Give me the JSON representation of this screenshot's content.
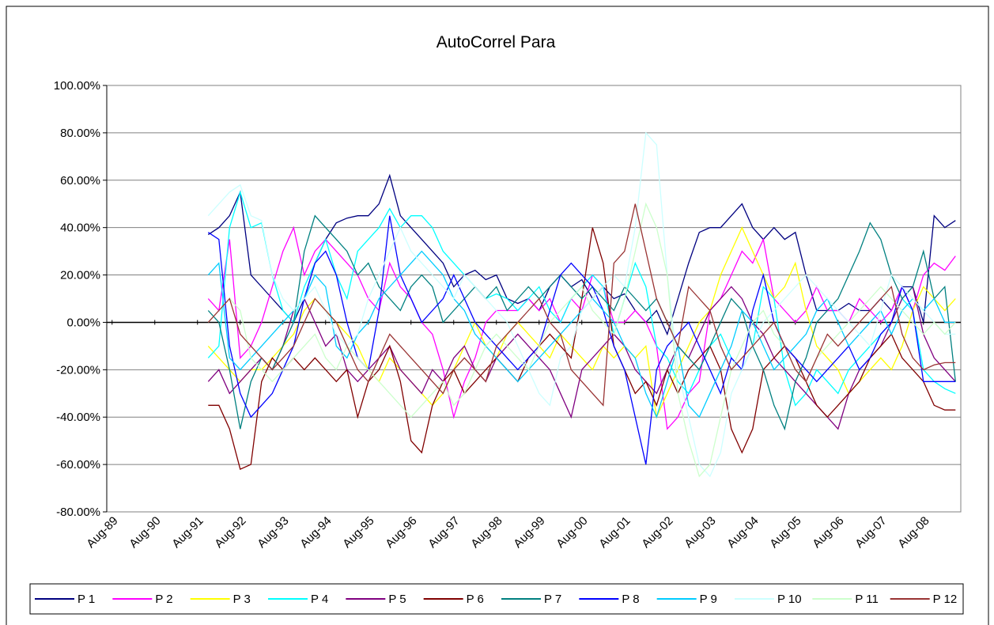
{
  "chart_data": {
    "type": "line",
    "title": "AutoCorrel Para",
    "categories": [
      "Aug-89",
      null,
      null,
      null,
      "Aug-90",
      null,
      null,
      null,
      "Aug-91",
      null,
      null,
      null,
      "Aug-92",
      null,
      null,
      null,
      "Aug-93",
      null,
      null,
      null,
      "Aug-94",
      null,
      null,
      null,
      "Aug-95",
      null,
      null,
      null,
      "Aug-96",
      null,
      null,
      null,
      "Aug-97",
      null,
      null,
      null,
      "Aug-98",
      null,
      null,
      null,
      "Aug-99",
      null,
      null,
      null,
      "Aug-00",
      null,
      null,
      null,
      "Aug-01",
      null,
      null,
      null,
      "Aug-02",
      null,
      null,
      null,
      "Aug-03",
      null,
      null,
      null,
      "Aug-04",
      null,
      null,
      null,
      "Aug-05",
      null,
      null,
      null,
      "Aug-06",
      null,
      null,
      null,
      "Aug-07",
      null,
      null,
      null,
      "Aug-08",
      null,
      null,
      null
    ],
    "ylim": [
      -80,
      100
    ],
    "yticks": [
      {
        "value": -80,
        "label": "-80.00%"
      },
      {
        "value": -60,
        "label": "-60.00%"
      },
      {
        "value": -40,
        "label": "-40.00%"
      },
      {
        "value": -20,
        "label": "-20.00%"
      },
      {
        "value": 0,
        "label": "0.00%"
      },
      {
        "value": 20,
        "label": "20.00%"
      },
      {
        "value": 40,
        "label": "40.00%"
      },
      {
        "value": 60,
        "label": "60.00%"
      },
      {
        "value": 80,
        "label": "80.00%"
      },
      {
        "value": 100,
        "label": "100.00%"
      }
    ],
    "grid": true,
    "legend": "bottom",
    "series": [
      {
        "name": "P 1",
        "color": "#000080",
        "values": [
          null,
          null,
          null,
          null,
          null,
          null,
          null,
          null,
          null,
          37,
          40,
          45,
          55,
          20,
          15,
          10,
          5,
          0,
          10,
          25,
          35,
          42,
          44,
          45,
          45,
          50,
          62,
          45,
          40,
          35,
          30,
          25,
          15,
          20,
          22,
          18,
          20,
          10,
          8,
          10,
          5,
          15,
          20,
          15,
          18,
          10,
          15,
          10,
          12,
          5,
          0,
          5,
          -5,
          10,
          25,
          38,
          40,
          40,
          45,
          50,
          40,
          35,
          40,
          35,
          38,
          20,
          5,
          5,
          5,
          8,
          5,
          5,
          10,
          5,
          15,
          15,
          0,
          45,
          40,
          43
        ]
      },
      {
        "name": "P 2",
        "color": "#ff00ff",
        "values": [
          null,
          null,
          null,
          null,
          null,
          null,
          null,
          null,
          null,
          10,
          5,
          35,
          -15,
          -10,
          0,
          15,
          30,
          40,
          20,
          30,
          35,
          30,
          25,
          20,
          10,
          5,
          25,
          15,
          10,
          0,
          -5,
          -20,
          -40,
          -25,
          -15,
          0,
          5,
          5,
          5,
          10,
          5,
          10,
          0,
          10,
          5,
          20,
          15,
          0,
          0,
          5,
          0,
          -10,
          -45,
          -40,
          -30,
          -25,
          5,
          10,
          20,
          30,
          25,
          35,
          10,
          5,
          0,
          5,
          15,
          5,
          5,
          0,
          10,
          5,
          0,
          5,
          15,
          5,
          20,
          25,
          22,
          28
        ]
      },
      {
        "name": "P 3",
        "color": "#ffff00",
        "values": [
          null,
          null,
          null,
          null,
          null,
          null,
          null,
          null,
          null,
          -10,
          -15,
          -20,
          -25,
          -20,
          -20,
          -15,
          -10,
          -5,
          5,
          10,
          5,
          0,
          -5,
          -10,
          -20,
          -25,
          -15,
          -20,
          -25,
          -30,
          -35,
          -30,
          -20,
          -10,
          0,
          -10,
          -15,
          -5,
          0,
          -5,
          -10,
          -15,
          -5,
          -10,
          -15,
          -20,
          -10,
          -15,
          -10,
          -15,
          -10,
          -40,
          -30,
          -20,
          -10,
          0,
          5,
          20,
          30,
          40,
          30,
          20,
          10,
          15,
          25,
          5,
          -10,
          -15,
          -20,
          -30,
          -25,
          -20,
          -15,
          -20,
          -10,
          5,
          15,
          10,
          5,
          10
        ]
      },
      {
        "name": "P 4",
        "color": "#00ffff",
        "values": [
          null,
          null,
          null,
          null,
          null,
          null,
          null,
          null,
          null,
          -15,
          -10,
          40,
          55,
          40,
          42,
          20,
          5,
          0,
          15,
          25,
          35,
          20,
          10,
          30,
          35,
          40,
          48,
          40,
          45,
          45,
          40,
          30,
          25,
          20,
          15,
          10,
          12,
          10,
          5,
          10,
          15,
          5,
          0,
          10,
          15,
          20,
          15,
          -5,
          10,
          25,
          15,
          -10,
          -15,
          -25,
          -30,
          -20,
          -10,
          -5,
          -15,
          -20,
          -10,
          15,
          10,
          -20,
          -35,
          -30,
          -20,
          -25,
          -30,
          -20,
          -15,
          -10,
          -5,
          0,
          10,
          5,
          -20,
          -25,
          -28,
          -30
        ]
      },
      {
        "name": "P 5",
        "color": "#800080",
        "values": [
          null,
          null,
          null,
          null,
          null,
          null,
          null,
          null,
          null,
          -25,
          -20,
          -30,
          -25,
          -20,
          -15,
          -20,
          -10,
          5,
          10,
          0,
          -10,
          -5,
          -20,
          -25,
          -20,
          -15,
          -10,
          -20,
          -25,
          -30,
          -20,
          -25,
          -15,
          -10,
          -20,
          -25,
          -15,
          -10,
          -5,
          -10,
          -15,
          -20,
          -30,
          -40,
          -20,
          -15,
          -10,
          -5,
          -10,
          -20,
          -25,
          -30,
          -20,
          -10,
          -15,
          -5,
          5,
          10,
          15,
          10,
          0,
          -5,
          -15,
          -20,
          -25,
          -30,
          -35,
          -40,
          -45,
          -30,
          -20,
          -15,
          -10,
          0,
          10,
          15,
          -5,
          -15,
          -20,
          -25
        ]
      },
      {
        "name": "P 6",
        "color": "#800000",
        "values": [
          null,
          null,
          null,
          null,
          null,
          null,
          null,
          null,
          null,
          -35,
          -35,
          -45,
          -62,
          -60,
          -25,
          -15,
          -20,
          -15,
          -20,
          -15,
          -20,
          -25,
          -20,
          -40,
          -25,
          -20,
          -10,
          -25,
          -50,
          -55,
          -35,
          -25,
          -20,
          -30,
          -25,
          -20,
          -15,
          -20,
          -25,
          -15,
          -10,
          -5,
          -10,
          -15,
          10,
          40,
          25,
          -10,
          -20,
          -30,
          -25,
          -35,
          -20,
          -30,
          -20,
          -15,
          -10,
          -20,
          -45,
          -55,
          -45,
          -20,
          -15,
          -10,
          -15,
          -25,
          -35,
          -40,
          -35,
          -30,
          -25,
          -15,
          -10,
          -5,
          -15,
          -20,
          -25,
          -35,
          -37,
          -37
        ]
      },
      {
        "name": "P 7",
        "color": "#008080",
        "values": [
          null,
          null,
          null,
          null,
          null,
          null,
          null,
          null,
          null,
          5,
          0,
          -20,
          -45,
          -25,
          -15,
          -20,
          -10,
          0,
          30,
          45,
          40,
          35,
          30,
          20,
          25,
          15,
          10,
          5,
          15,
          20,
          15,
          0,
          5,
          10,
          15,
          10,
          15,
          5,
          10,
          15,
          10,
          15,
          20,
          15,
          10,
          15,
          10,
          5,
          15,
          10,
          5,
          10,
          0,
          -10,
          -15,
          -20,
          -10,
          0,
          10,
          5,
          -10,
          -20,
          -35,
          -45,
          -25,
          -15,
          0,
          5,
          10,
          20,
          30,
          42,
          35,
          20,
          10,
          15,
          30,
          10,
          15,
          -25
        ]
      },
      {
        "name": "P 8",
        "color": "#0000ff",
        "values": [
          null,
          null,
          null,
          null,
          null,
          null,
          null,
          null,
          null,
          38,
          35,
          -10,
          -30,
          -40,
          -35,
          -30,
          -20,
          -10,
          10,
          25,
          30,
          20,
          0,
          -15,
          -20,
          5,
          45,
          20,
          10,
          0,
          5,
          10,
          20,
          10,
          0,
          -5,
          -10,
          -15,
          -20,
          -15,
          -10,
          5,
          20,
          25,
          20,
          15,
          5,
          -10,
          -20,
          -40,
          -60,
          -20,
          -10,
          -5,
          0,
          -10,
          -20,
          -30,
          -15,
          -20,
          5,
          20,
          0,
          -10,
          -15,
          -20,
          -25,
          -20,
          -15,
          -10,
          -20,
          -15,
          -5,
          0,
          15,
          5,
          -25,
          -25,
          -25,
          -25
        ]
      },
      {
        "name": "P 9",
        "color": "#00ccff",
        "values": [
          null,
          null,
          null,
          null,
          null,
          null,
          null,
          null,
          null,
          20,
          25,
          -15,
          -20,
          -15,
          -10,
          -5,
          0,
          5,
          10,
          20,
          15,
          -10,
          -15,
          -5,
          0,
          10,
          15,
          20,
          25,
          30,
          25,
          20,
          10,
          5,
          -5,
          -10,
          -15,
          -20,
          -25,
          -20,
          -15,
          -10,
          -5,
          0,
          5,
          10,
          5,
          0,
          -10,
          -15,
          -30,
          -40,
          -25,
          -10,
          -35,
          -40,
          -30,
          -20,
          -10,
          5,
          0,
          -10,
          -20,
          -15,
          -10,
          -5,
          5,
          10,
          0,
          -10,
          -5,
          0,
          5,
          -5,
          5,
          10,
          5,
          10,
          0,
          0
        ]
      },
      {
        "name": "P 10",
        "color": "#ccffff",
        "values": [
          null,
          null,
          null,
          null,
          null,
          null,
          null,
          null,
          null,
          45,
          50,
          55,
          58,
          45,
          43,
          20,
          10,
          5,
          10,
          15,
          5,
          -5,
          -10,
          -5,
          10,
          20,
          30,
          40,
          30,
          25,
          20,
          15,
          10,
          20,
          15,
          10,
          5,
          0,
          -10,
          -20,
          -30,
          -35,
          -15,
          -10,
          5,
          10,
          15,
          20,
          15,
          40,
          80,
          75,
          20,
          -20,
          -40,
          -60,
          -65,
          -55,
          -30,
          -20,
          -10,
          0,
          5,
          10,
          15,
          20,
          15,
          10,
          5,
          0,
          -5,
          -10,
          5,
          20,
          15,
          10,
          5,
          0,
          -5,
          -5
        ]
      },
      {
        "name": "P 11",
        "color": "#ccffcc",
        "values": [
          null,
          null,
          null,
          null,
          null,
          null,
          null,
          null,
          null,
          0,
          5,
          10,
          5,
          -15,
          -20,
          -25,
          -20,
          -15,
          -10,
          -5,
          -15,
          -20,
          -10,
          -15,
          -20,
          -25,
          -30,
          -35,
          -40,
          -35,
          -30,
          -25,
          -35,
          -30,
          -20,
          -10,
          -5,
          -10,
          -15,
          -20,
          -10,
          0,
          5,
          10,
          15,
          5,
          0,
          -5,
          10,
          30,
          50,
          40,
          20,
          -30,
          -50,
          -65,
          -60,
          -40,
          -20,
          -10,
          0,
          5,
          -5,
          -10,
          -20,
          -25,
          -15,
          -10,
          -5,
          0,
          5,
          10,
          15,
          10,
          5,
          0,
          -5,
          0,
          -5,
          0
        ]
      },
      {
        "name": "P 12",
        "color": "#993333",
        "values": [
          null,
          null,
          null,
          null,
          null,
          null,
          null,
          null,
          null,
          0,
          5,
          10,
          -5,
          -10,
          -15,
          -20,
          -15,
          -10,
          0,
          10,
          5,
          0,
          -10,
          -20,
          -25,
          -15,
          -5,
          -10,
          -15,
          -20,
          -25,
          -30,
          -20,
          -15,
          -20,
          -25,
          -10,
          -5,
          0,
          5,
          10,
          0,
          -5,
          -20,
          -25,
          -30,
          -35,
          25,
          30,
          50,
          30,
          10,
          0,
          -10,
          15,
          10,
          5,
          -10,
          -20,
          -15,
          -10,
          -5,
          0,
          -10,
          -20,
          -25,
          -15,
          -5,
          -10,
          -5,
          0,
          5,
          10,
          15,
          -5,
          -15,
          -20,
          -18,
          -17,
          -17
        ]
      }
    ]
  }
}
